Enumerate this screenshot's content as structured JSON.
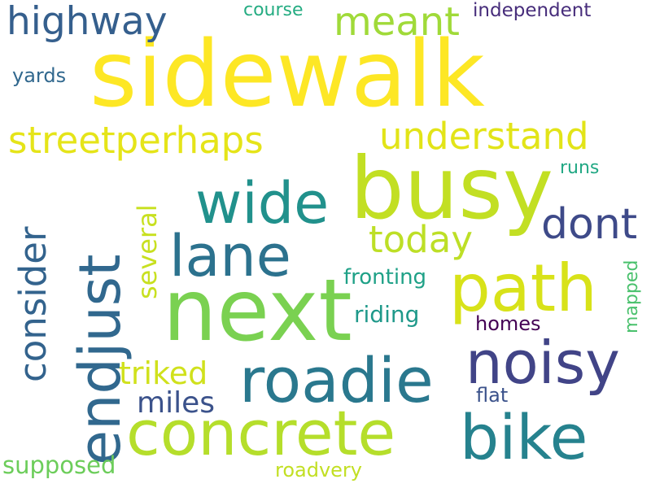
{
  "words": [
    {
      "text": "sidewalk",
      "color": "#fde725"
    },
    {
      "text": "busy",
      "color": "#c2df23"
    },
    {
      "text": "next",
      "color": "#7ad151"
    },
    {
      "text": "endjust",
      "color": "#31688e"
    },
    {
      "text": "concrete",
      "color": "#b5de2b"
    },
    {
      "text": "roadie",
      "color": "#2a788e"
    },
    {
      "text": "bike",
      "color": "#26828e"
    },
    {
      "text": "path",
      "color": "#d8e219"
    },
    {
      "text": "noisy",
      "color": "#414487"
    },
    {
      "text": "lane",
      "color": "#2c728e"
    },
    {
      "text": "wide",
      "color": "#21918c"
    },
    {
      "text": "streetperhaps",
      "color": "#e5e419"
    },
    {
      "text": "understand",
      "color": "#e2e418"
    },
    {
      "text": "highway",
      "color": "#355f8d"
    },
    {
      "text": "meant",
      "color": "#a0da39"
    },
    {
      "text": "consider",
      "color": "#33638d"
    },
    {
      "text": "dont",
      "color": "#3e4a89"
    },
    {
      "text": "today",
      "color": "#bddf26"
    },
    {
      "text": "several",
      "color": "#c8e020"
    },
    {
      "text": "triked",
      "color": "#d0e11c"
    },
    {
      "text": "miles",
      "color": "#3b528b"
    },
    {
      "text": "supposed",
      "color": "#6ccd5a"
    },
    {
      "text": "riding",
      "color": "#1f998a"
    },
    {
      "text": "fronting",
      "color": "#1fa187"
    },
    {
      "text": "homes",
      "color": "#440154"
    },
    {
      "text": "flat",
      "color": "#3b528b"
    },
    {
      "text": "mapped",
      "color": "#4ac16d"
    },
    {
      "text": "runs",
      "color": "#22a884"
    },
    {
      "text": "yards",
      "color": "#31688e"
    },
    {
      "text": "course",
      "color": "#25ac82"
    },
    {
      "text": "independent",
      "color": "#472d7b"
    },
    {
      "text": "roadvery",
      "color": "#c2df23"
    }
  ]
}
